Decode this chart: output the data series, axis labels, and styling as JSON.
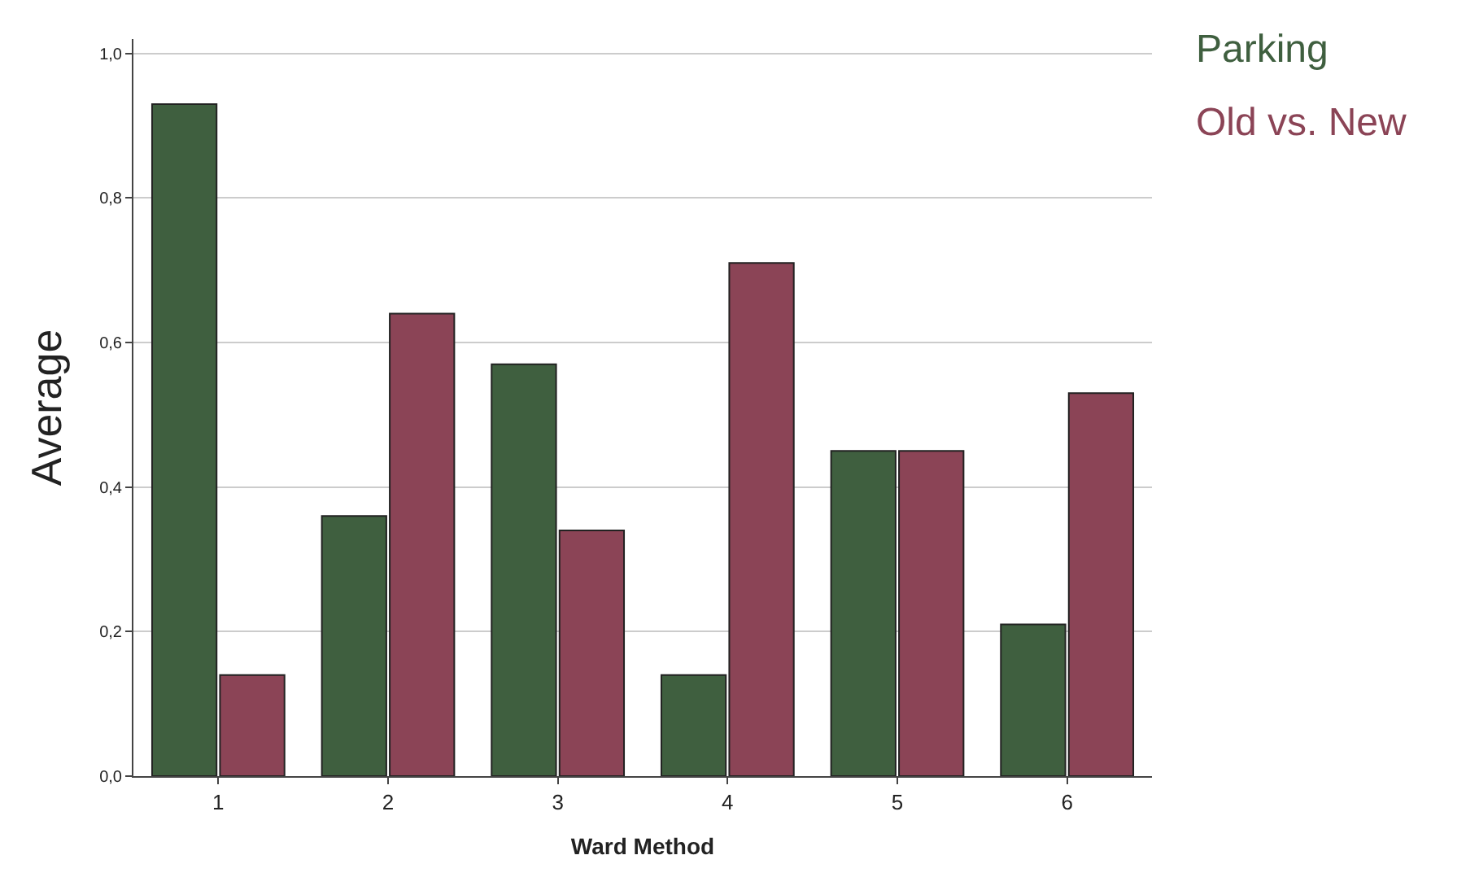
{
  "chart_data": {
    "type": "bar",
    "xlabel": "Ward Method",
    "ylabel": "Average",
    "categories": [
      "1",
      "2",
      "3",
      "4",
      "5",
      "6"
    ],
    "series": [
      {
        "name": "Parking",
        "color": "#3f5f3f",
        "values": [
          0.93,
          0.36,
          0.57,
          0.14,
          0.45,
          0.21
        ]
      },
      {
        "name": "Old vs. New",
        "color": "#8b4456",
        "values": [
          0.14,
          0.64,
          0.34,
          0.71,
          0.45,
          0.53
        ]
      }
    ],
    "ylim": [
      0,
      1.02
    ],
    "yticks": [
      {
        "value": 0,
        "label": "0,0"
      },
      {
        "value": 0.2,
        "label": "0,2"
      },
      {
        "value": 0.4,
        "label": "0,4"
      },
      {
        "value": 0.6,
        "label": "0,6"
      },
      {
        "value": 0.8,
        "label": "0,8"
      },
      {
        "value": 1.0,
        "label": "1,0"
      }
    ],
    "grid": "y"
  }
}
